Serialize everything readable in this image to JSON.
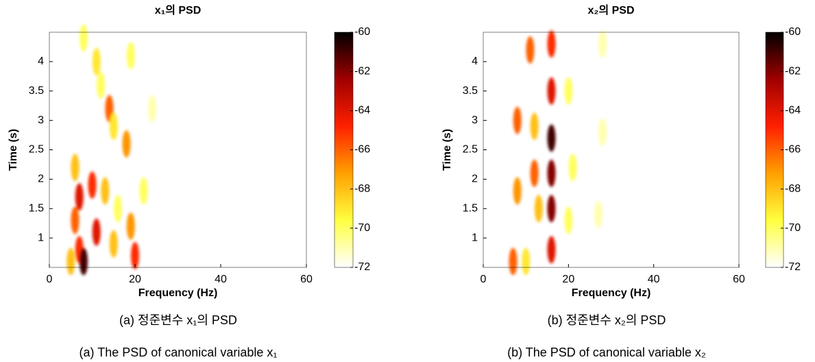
{
  "chart_data": [
    {
      "type": "heatmap",
      "title": "x₁의 PSD",
      "xlabel": "Frequency (Hz)",
      "ylabel": "Time (s)",
      "xlim": [
        0,
        60
      ],
      "ylim": [
        0.5,
        4.5
      ],
      "xticks": [
        0,
        20,
        40,
        60
      ],
      "yticks": [
        1,
        1.5,
        2,
        2.5,
        3,
        3.5,
        4
      ],
      "clim": [
        -72,
        -60
      ],
      "cticks": [
        -72,
        -70,
        -68,
        -66,
        -64,
        -62,
        -60
      ],
      "colormap": [
        "#ffffff",
        "#ffff40",
        "#ffa000",
        "#ff2000",
        "#a00000",
        "#000000"
      ],
      "x": [
        8,
        11,
        12,
        14,
        15,
        19,
        18,
        24,
        6,
        7,
        6,
        7,
        8,
        10,
        11,
        13,
        15,
        16,
        19,
        20,
        22,
        5
      ],
      "y": [
        4.4,
        4.0,
        3.6,
        3.2,
        2.9,
        4.1,
        2.6,
        3.2,
        2.2,
        1.7,
        1.3,
        0.8,
        0.6,
        1.9,
        1.1,
        1.8,
        0.9,
        1.5,
        1.2,
        0.7,
        1.8,
        0.6
      ],
      "values": [
        -70,
        -69,
        -70,
        -66,
        -69,
        -70,
        -67,
        -71,
        -68,
        -64,
        -66,
        -65,
        -61,
        -65,
        -64,
        -68,
        -68,
        -70,
        -67,
        -65,
        -70,
        -68
      ],
      "caption": "(a) 정준변수 x₁의 PSD",
      "caption_en": "(a) The PSD of canonical variable x₁"
    },
    {
      "type": "heatmap",
      "title": "x₂의 PSD",
      "xlabel": "Frequency (Hz)",
      "ylabel": "Time (s)",
      "xlim": [
        0,
        60
      ],
      "ylim": [
        0.5,
        4.5
      ],
      "xticks": [
        0,
        20,
        40,
        60
      ],
      "yticks": [
        1,
        1.5,
        2,
        2.5,
        3,
        3.5,
        4
      ],
      "clim": [
        -72,
        -60
      ],
      "cticks": [
        -72,
        -70,
        -68,
        -66,
        -64,
        -62,
        -60
      ],
      "colormap": [
        "#ffffff",
        "#ffff40",
        "#ffa000",
        "#ff2000",
        "#a00000",
        "#000000"
      ],
      "x": [
        11,
        8,
        8,
        7,
        12,
        12,
        16,
        16,
        16,
        16,
        16,
        16,
        20,
        20,
        21,
        28,
        28,
        27,
        13,
        10
      ],
      "y": [
        4.2,
        3.0,
        1.8,
        0.6,
        2.1,
        2.9,
        4.3,
        3.5,
        2.7,
        2.1,
        1.5,
        0.8,
        3.5,
        1.3,
        2.2,
        4.3,
        2.8,
        1.4,
        1.5,
        0.6
      ],
      "values": [
        -66,
        -66,
        -67,
        -66,
        -66,
        -68,
        -65,
        -64,
        -61,
        -62,
        -62,
        -64,
        -70,
        -70,
        -70,
        -71,
        -71,
        -71,
        -68,
        -69
      ],
      "caption": "(b) 정준변수 x₂의 PSD",
      "caption_en": "(b) The PSD of canonical variable x₂"
    }
  ]
}
